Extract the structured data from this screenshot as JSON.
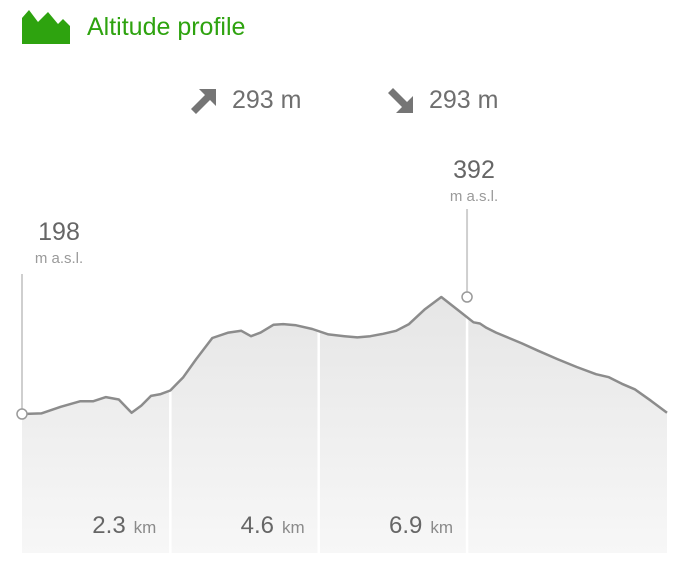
{
  "header": {
    "title": "Altitude profile",
    "icon": "mountain-icon",
    "accent": "#2ea30f"
  },
  "stats": {
    "ascent": {
      "icon": "arrow-up-right-icon",
      "value": "293 m"
    },
    "descent": {
      "icon": "arrow-down-right-icon",
      "value": "293 m"
    }
  },
  "chart_data": {
    "type": "area",
    "xlabel": "",
    "ylabel": "",
    "x_unit": "km",
    "y_unit": "m a.s.l.",
    "x": [
      0,
      0.3,
      0.6,
      0.9,
      1.1,
      1.3,
      1.5,
      1.7,
      1.85,
      2.0,
      2.15,
      2.3,
      2.5,
      2.7,
      2.95,
      3.2,
      3.4,
      3.55,
      3.7,
      3.9,
      4.05,
      4.25,
      4.5,
      4.75,
      5.0,
      5.2,
      5.4,
      5.6,
      5.8,
      6.0,
      6.25,
      6.5,
      6.8,
      7.0,
      7.1,
      7.2,
      7.35,
      7.55,
      7.75,
      8.0,
      8.3,
      8.6,
      8.9,
      9.1,
      9.3,
      9.5,
      9.75,
      10.0
    ],
    "elevation": [
      198,
      199,
      210,
      219,
      219,
      226,
      222,
      200,
      212,
      228,
      231,
      237,
      259,
      289,
      324,
      333,
      336,
      327,
      333,
      346,
      347,
      345,
      339,
      330,
      327,
      325,
      327,
      331,
      336,
      347,
      372,
      392,
      367,
      350,
      348,
      341,
      333,
      324,
      315,
      303,
      289,
      276,
      264,
      259,
      248,
      239,
      220,
      200
    ],
    "ticks": [
      {
        "value": "2.3",
        "unit": "km",
        "x": 2.3
      },
      {
        "value": "4.6",
        "unit": "km",
        "x": 4.6
      },
      {
        "value": "6.9",
        "unit": "km",
        "x": 6.9
      }
    ],
    "annotations": [
      {
        "name": "start",
        "x": 0,
        "value": "198",
        "unit": "m a.s.l."
      },
      {
        "name": "max",
        "x": 6.9,
        "value": "392",
        "unit": "m a.s.l."
      }
    ],
    "grid": false
  }
}
